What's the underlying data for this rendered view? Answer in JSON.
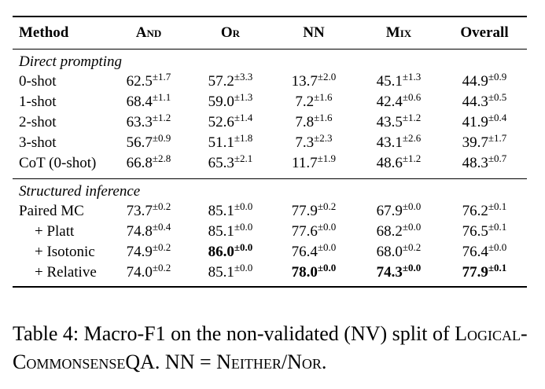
{
  "table": {
    "headers": [
      "Method",
      "And",
      "Or",
      "NN",
      "Mix",
      "Overall"
    ],
    "sections": [
      {
        "title": "Direct prompting",
        "rows": [
          {
            "method": "0-shot",
            "cells": [
              [
                "62.5",
                "±1.7"
              ],
              [
                "57.2",
                "±3.3"
              ],
              [
                "13.7",
                "±2.0"
              ],
              [
                "45.1",
                "±1.3"
              ],
              [
                "44.9",
                "±0.9"
              ]
            ]
          },
          {
            "method": "1-shot",
            "cells": [
              [
                "68.4",
                "±1.1"
              ],
              [
                "59.0",
                "±1.3"
              ],
              [
                "7.2",
                "±1.6"
              ],
              [
                "42.4",
                "±0.6"
              ],
              [
                "44.3",
                "±0.5"
              ]
            ]
          },
          {
            "method": "2-shot",
            "cells": [
              [
                "63.3",
                "±1.2"
              ],
              [
                "52.6",
                "±1.4"
              ],
              [
                "7.8",
                "±1.6"
              ],
              [
                "43.5",
                "±1.2"
              ],
              [
                "41.9",
                "±0.4"
              ]
            ]
          },
          {
            "method": "3-shot",
            "cells": [
              [
                "56.7",
                "±0.9"
              ],
              [
                "51.1",
                "±1.8"
              ],
              [
                "7.3",
                "±2.3"
              ],
              [
                "43.1",
                "±2.6"
              ],
              [
                "39.7",
                "±1.7"
              ]
            ]
          },
          {
            "method": "CoT (0-shot)",
            "cells": [
              [
                "66.8",
                "±2.8"
              ],
              [
                "65.3",
                "±2.1"
              ],
              [
                "11.7",
                "±1.9"
              ],
              [
                "48.6",
                "±1.2"
              ],
              [
                "48.3",
                "±0.7"
              ]
            ]
          }
        ]
      },
      {
        "title": "Structured inference",
        "rows": [
          {
            "method": "Paired MC",
            "cells": [
              [
                "73.7",
                "±0.2"
              ],
              [
                "85.1",
                "±0.0"
              ],
              [
                "77.9",
                "±0.2"
              ],
              [
                "67.9",
                "±0.0"
              ],
              [
                "76.2",
                "±0.1"
              ]
            ]
          },
          {
            "method": "+ Platt",
            "cells": [
              [
                "74.8",
                "±0.4"
              ],
              [
                "85.1",
                "±0.0"
              ],
              [
                "77.6",
                "±0.0"
              ],
              [
                "68.2",
                "±0.0"
              ],
              [
                "76.5",
                "±0.1"
              ]
            ]
          },
          {
            "method": "+ Isotonic",
            "cells": [
              [
                "74.9",
                "±0.2"
              ],
              [
                "86.0",
                "±0.0"
              ],
              [
                "76.4",
                "±0.0"
              ],
              [
                "68.0",
                "±0.2"
              ],
              [
                "76.4",
                "±0.0"
              ]
            ]
          },
          {
            "method": "+ Relative",
            "cells": [
              [
                "74.0",
                "±0.2"
              ],
              [
                "85.1",
                "±0.0"
              ],
              [
                "78.0",
                "±0.0"
              ],
              [
                "74.3",
                "±0.0"
              ],
              [
                "77.9",
                "±0.1"
              ]
            ]
          }
        ]
      }
    ]
  },
  "caption": {
    "prefix": "Table 4: Macro-F1 on the non-validated (NV) split of",
    "dataset": "Logical-CommonsenseQA",
    "middle": ". NN = ",
    "abbrev": "Neither/Nor",
    "suffix": "."
  }
}
